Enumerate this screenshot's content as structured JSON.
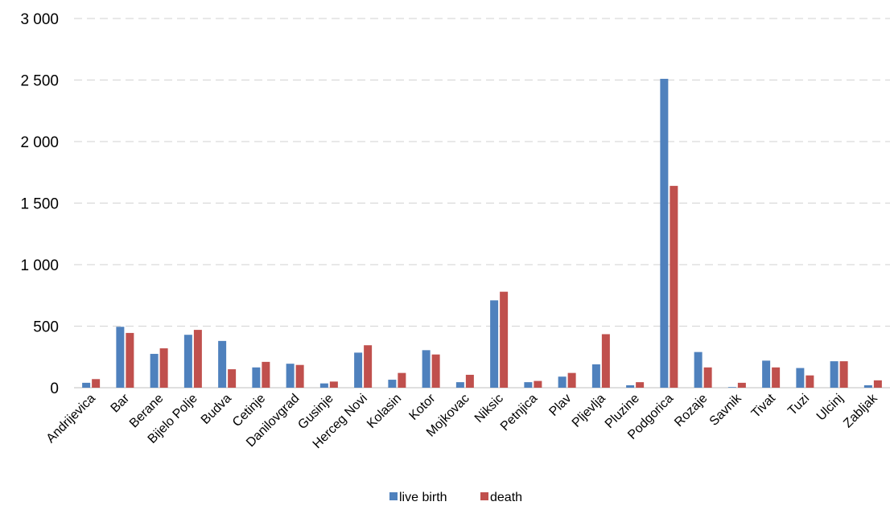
{
  "chart_data": {
    "type": "bar",
    "title": "",
    "xlabel": "",
    "ylabel": "",
    "ylim": [
      0,
      3000
    ],
    "y_ticks": [
      0,
      500,
      1000,
      1500,
      2000,
      2500,
      3000
    ],
    "y_tick_labels": [
      "0",
      "500",
      "1 000",
      "1 500",
      "2 000",
      "2 500",
      "3 000"
    ],
    "grid": true,
    "legend_position": "bottom",
    "categories": [
      "Andrijevica",
      "Bar",
      "Berane",
      "Bijelo Polje",
      "Budva",
      "Cetinje",
      "Danilovgrad",
      "Gusinje",
      "Herceg Novi",
      "Kolasin",
      "Kotor",
      "Mojkovac",
      "Niksic",
      "Petnjica",
      "Plav",
      "Pljevlja",
      "Pluzine",
      "Podgorica",
      "Rozaje",
      "Savnik",
      "Tivat",
      "Tuzi",
      "Ulcinj",
      "Zabljak"
    ],
    "series": [
      {
        "name": "live birth",
        "color": "#4f81bd",
        "values": [
          40,
          495,
          275,
          430,
          380,
          165,
          195,
          35,
          285,
          65,
          305,
          45,
          710,
          45,
          90,
          190,
          20,
          2510,
          290,
          5,
          220,
          160,
          215,
          20
        ]
      },
      {
        "name": "death",
        "color": "#c0504d",
        "values": [
          70,
          445,
          320,
          470,
          150,
          210,
          185,
          50,
          345,
          120,
          270,
          105,
          780,
          55,
          120,
          435,
          45,
          1640,
          165,
          40,
          165,
          100,
          215,
          60
        ]
      }
    ]
  }
}
